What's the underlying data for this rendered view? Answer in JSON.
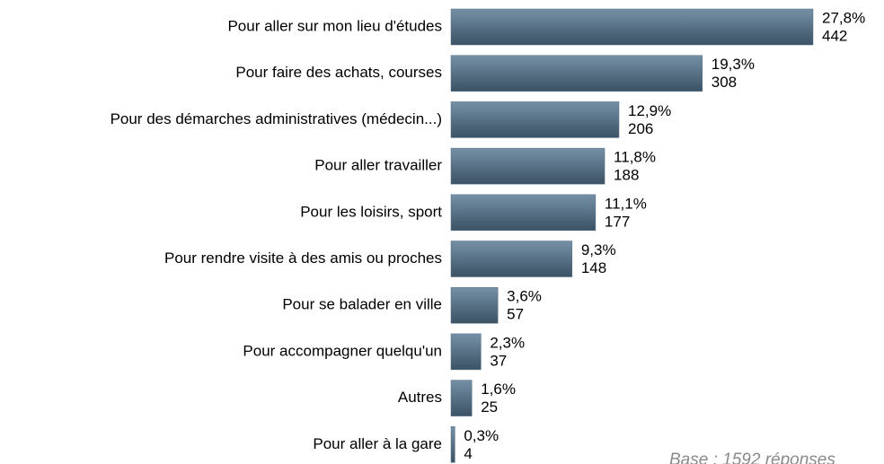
{
  "chart_data": {
    "type": "bar",
    "orientation": "horizontal",
    "categories": [
      "Pour aller sur mon lieu d'études",
      "Pour faire des achats, courses",
      "Pour des démarches administratives (médecin...)",
      "Pour aller travailler",
      "Pour les loisirs, sport",
      "Pour rendre visite à  des amis ou proches",
      "Pour se balader en ville",
      "Pour accompagner quelqu'un",
      "Autres",
      "Pour aller à la gare"
    ],
    "values": [
      27.8,
      19.3,
      12.9,
      11.8,
      11.1,
      9.3,
      3.6,
      2.3,
      1.6,
      0.3
    ],
    "value_labels": [
      "27,8%",
      "19,3%",
      "12,9%",
      "11,8%",
      "11,1%",
      "9,3%",
      "3,6%",
      "2,3%",
      "1,6%",
      "0,3%"
    ],
    "counts": [
      442,
      308,
      206,
      188,
      177,
      148,
      57,
      37,
      25,
      4
    ],
    "color": "#566f85",
    "note": "Base : 1592 réponses"
  }
}
